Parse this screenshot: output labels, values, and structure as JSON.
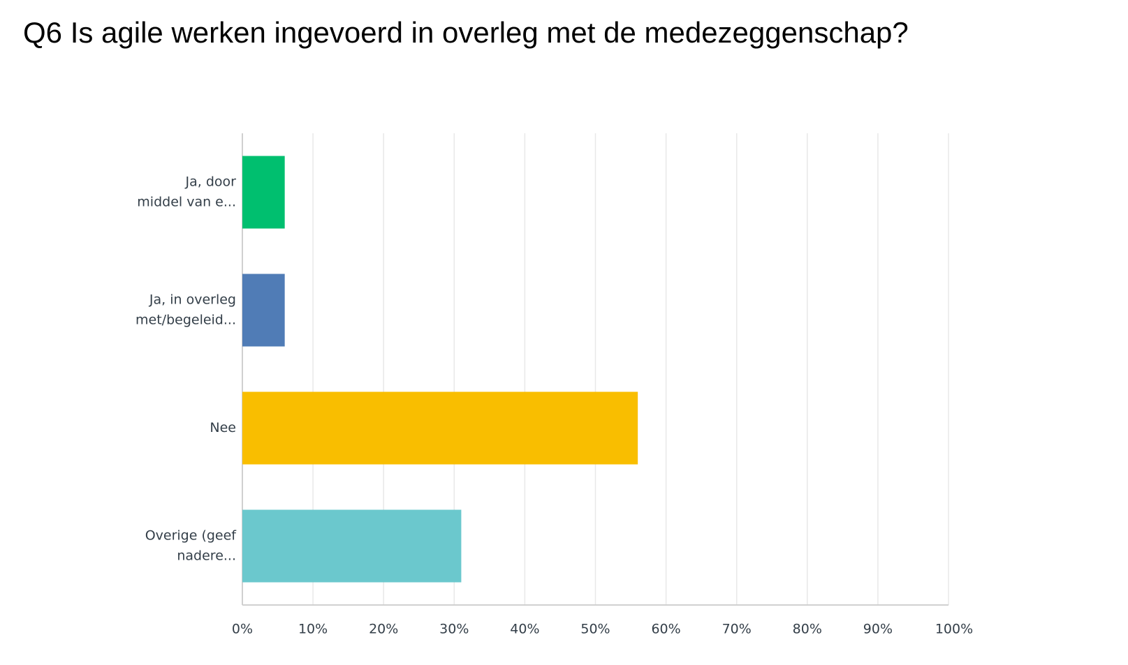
{
  "chart_data": {
    "type": "barh",
    "title": "Q6 Is agile werken ingevoerd in overleg met de medezeggenschap?",
    "categories": [
      [
        "Ja, door",
        "middel van e..."
      ],
      [
        "Ja, in overleg",
        "met/begeleid..."
      ],
      [
        "Nee"
      ],
      [
        "Overige (geef",
        "nadere..."
      ]
    ],
    "values": [
      6,
      6,
      56,
      31
    ],
    "colors": [
      "#00bf6f",
      "#507cb6",
      "#f9be00",
      "#6bc8cd"
    ],
    "xlim": [
      0,
      100
    ],
    "xticks": [
      {
        "value": 0,
        "label": "0%"
      },
      {
        "value": 10,
        "label": "10%"
      },
      {
        "value": 20,
        "label": "20%"
      },
      {
        "value": 30,
        "label": "30%"
      },
      {
        "value": 40,
        "label": "40%"
      },
      {
        "value": 50,
        "label": "50%"
      },
      {
        "value": 60,
        "label": "60%"
      },
      {
        "value": 70,
        "label": "70%"
      },
      {
        "value": 80,
        "label": "80%"
      },
      {
        "value": 90,
        "label": "90%"
      },
      {
        "value": 100,
        "label": "100%"
      }
    ],
    "grid": true
  }
}
